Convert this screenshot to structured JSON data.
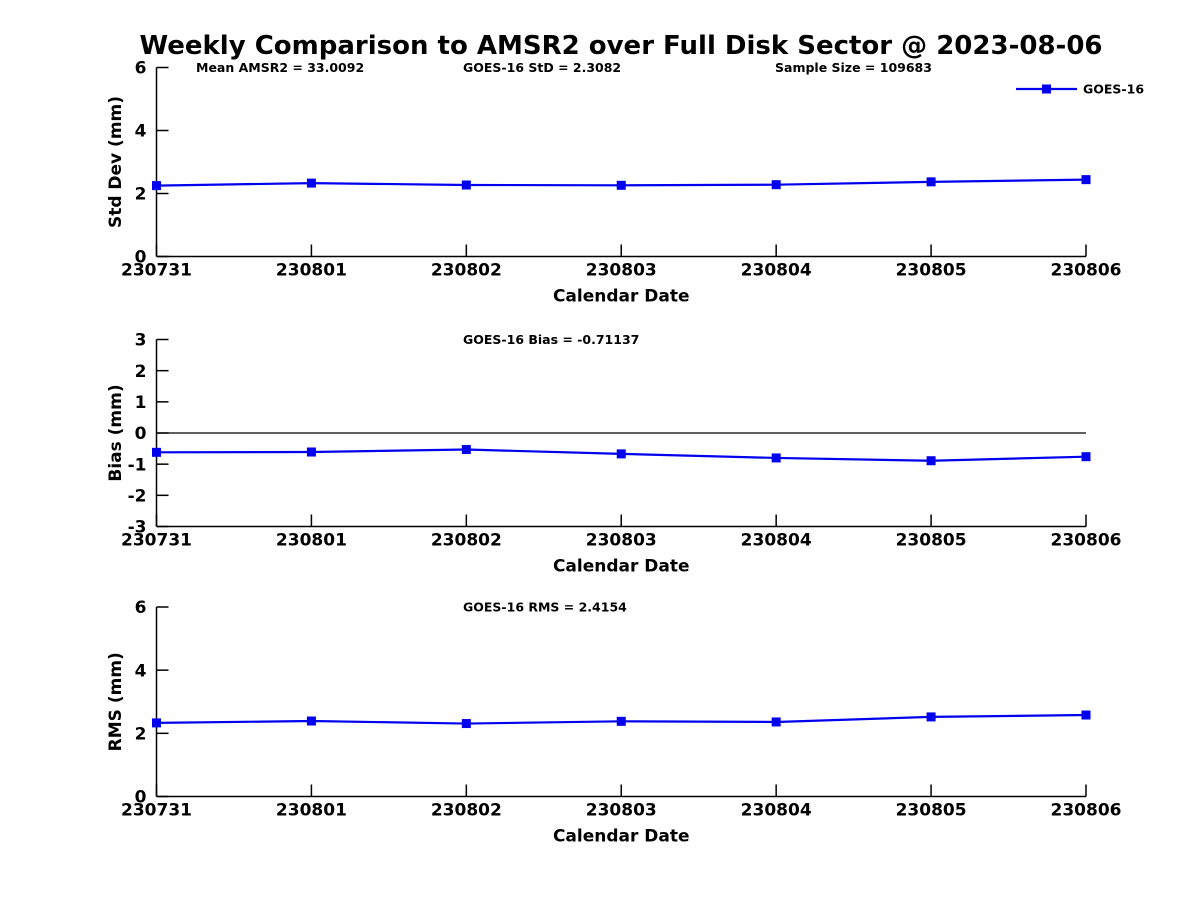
{
  "title": "Weekly Comparison to AMSR2 over Full Disk Sector @ 2023-08-06",
  "legend": {
    "label": "GOES-16"
  },
  "colors": {
    "line": "#0000ee",
    "axis": "#000000",
    "text": "#000000",
    "background": "#ffffff",
    "zero_line": "#000000"
  },
  "chart_data": [
    {
      "type": "line",
      "name": "std-dev",
      "annotations": [
        "Mean AMSR2 = 33.0092",
        "GOES-16 StD = 2.3082",
        "Sample Size = 109683"
      ],
      "ylabel": "Std Dev (mm)",
      "xlabel": "Calendar Date",
      "ylim": [
        0,
        6
      ],
      "yticks": [
        0,
        2,
        4,
        6
      ],
      "categories": [
        "230731",
        "230801",
        "230802",
        "230803",
        "230804",
        "230805",
        "230806"
      ],
      "series": [
        {
          "name": "GOES-16",
          "values": [
            2.25,
            2.33,
            2.27,
            2.26,
            2.28,
            2.37,
            2.44
          ]
        }
      ],
      "zero_line": false,
      "show_legend": true,
      "legend_position": "top-right"
    },
    {
      "type": "line",
      "name": "bias",
      "annotations": [
        "GOES-16 Bias  = -0.71137"
      ],
      "ylabel": "Bias (mm)",
      "xlabel": "Calendar Date",
      "ylim": [
        -3,
        3
      ],
      "yticks": [
        3,
        2,
        1,
        0,
        -1,
        -2,
        -3
      ],
      "categories": [
        "230731",
        "230801",
        "230802",
        "230803",
        "230804",
        "230805",
        "230806"
      ],
      "series": [
        {
          "name": "GOES-16",
          "values": [
            -0.62,
            -0.61,
            -0.53,
            -0.67,
            -0.8,
            -0.89,
            -0.76
          ]
        }
      ],
      "zero_line": true,
      "show_legend": false
    },
    {
      "type": "line",
      "name": "rms",
      "annotations": [
        "GOES-16 RMS = 2.4154"
      ],
      "ylabel": "RMS (mm)",
      "xlabel": "Calendar Date",
      "ylim": [
        0,
        6
      ],
      "yticks": [
        0,
        2,
        4,
        6
      ],
      "categories": [
        "230731",
        "230801",
        "230802",
        "230803",
        "230804",
        "230805",
        "230806"
      ],
      "series": [
        {
          "name": "GOES-16",
          "values": [
            2.33,
            2.39,
            2.31,
            2.38,
            2.36,
            2.52,
            2.58
          ]
        }
      ],
      "zero_line": false,
      "show_legend": false
    }
  ]
}
